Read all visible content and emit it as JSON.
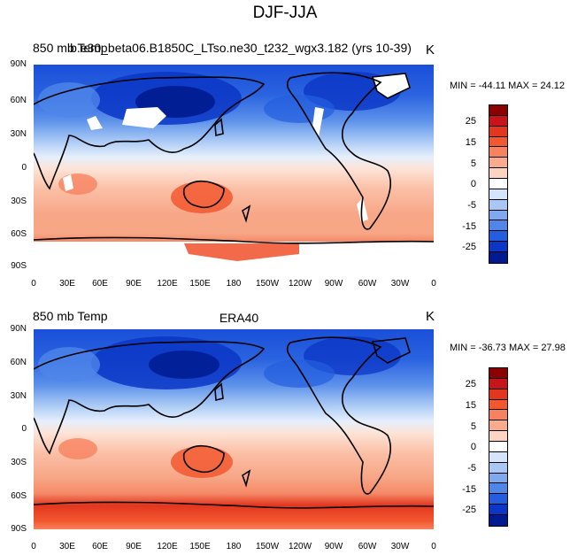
{
  "figure": {
    "title": "DJF-JJA"
  },
  "panels": [
    {
      "left_label": "850 mb Temp",
      "center_label": "b.e30_beta06.B1850C_LTso.ne30_t232_wgx3.182 (yrs 10-39)",
      "units": "K",
      "stats": "MIN = -44.11 MAX =  24.12"
    },
    {
      "left_label": "850 mb Temp",
      "center_label": "ERA40",
      "units": "K",
      "stats": "MIN = -36.73 MAX =  27.98"
    }
  ],
  "axes": {
    "lat_labels": [
      "90N",
      "60N",
      "30N",
      "0",
      "30S",
      "60S",
      "90S"
    ],
    "lon_labels": [
      "0",
      "30E",
      "60E",
      "90E",
      "120E",
      "150E",
      "180",
      "150W",
      "120W",
      "90W",
      "60W",
      "30W",
      "0"
    ]
  },
  "colorbar": {
    "labels": [
      "25",
      "15",
      "5",
      "0",
      "-5",
      "-15",
      "-25"
    ],
    "colors": [
      "#8b0000",
      "#c71418",
      "#e3361f",
      "#f2582f",
      "#f7825f",
      "#fbab8d",
      "#fdd4c1",
      "#ffffff",
      "#d4e4fb",
      "#a9c7f5",
      "#7ea9ef",
      "#4f86e8",
      "#245ede",
      "#0b36c6",
      "#001b8f"
    ]
  }
}
